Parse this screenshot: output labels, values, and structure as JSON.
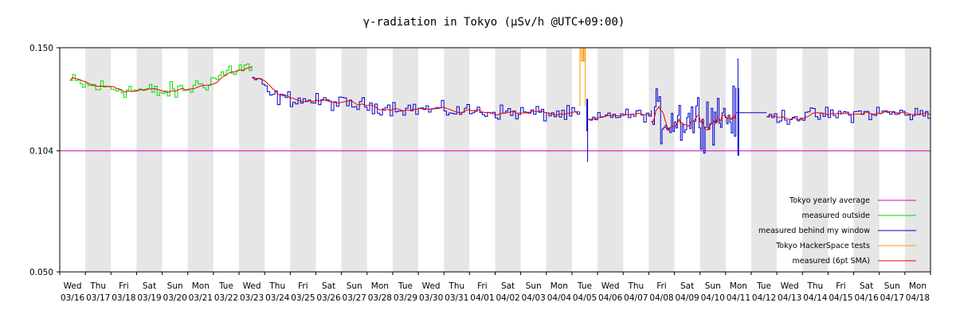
{
  "chart_data": {
    "type": "line",
    "title": "γ-radiation in Tokyo (μSv/h @UTC+09:00)",
    "xlabel": "",
    "ylabel": "",
    "x_range": [
      "03/16",
      "04/18"
    ],
    "ylim": [
      0.05,
      0.15
    ],
    "y_ticks": [
      "0.150",
      "0.104",
      "0.050"
    ],
    "grid": "alternating day shading",
    "legend_position": "bottom-right",
    "days": [
      {
        "dow": "Wed",
        "date": "03/16"
      },
      {
        "dow": "Thu",
        "date": "03/17"
      },
      {
        "dow": "Fri",
        "date": "03/18"
      },
      {
        "dow": "Sat",
        "date": "03/19"
      },
      {
        "dow": "Sun",
        "date": "03/20"
      },
      {
        "dow": "Mon",
        "date": "03/21"
      },
      {
        "dow": "Tue",
        "date": "03/22"
      },
      {
        "dow": "Wed",
        "date": "03/23"
      },
      {
        "dow": "Thu",
        "date": "03/24"
      },
      {
        "dow": "Fri",
        "date": "03/25"
      },
      {
        "dow": "Sat",
        "date": "03/26"
      },
      {
        "dow": "Sun",
        "date": "03/27"
      },
      {
        "dow": "Mon",
        "date": "03/28"
      },
      {
        "dow": "Tue",
        "date": "03/29"
      },
      {
        "dow": "Wed",
        "date": "03/30"
      },
      {
        "dow": "Thu",
        "date": "03/31"
      },
      {
        "dow": "Fri",
        "date": "04/01"
      },
      {
        "dow": "Sat",
        "date": "04/02"
      },
      {
        "dow": "Sun",
        "date": "04/03"
      },
      {
        "dow": "Mon",
        "date": "04/04"
      },
      {
        "dow": "Tue",
        "date": "04/05"
      },
      {
        "dow": "Wed",
        "date": "04/06"
      },
      {
        "dow": "Thu",
        "date": "04/07"
      },
      {
        "dow": "Fri",
        "date": "04/08"
      },
      {
        "dow": "Sat",
        "date": "04/09"
      },
      {
        "dow": "Sun",
        "date": "04/10"
      },
      {
        "dow": "Mon",
        "date": "04/11"
      },
      {
        "dow": "Tue",
        "date": "04/12"
      },
      {
        "dow": "Wed",
        "date": "04/13"
      },
      {
        "dow": "Thu",
        "date": "04/14"
      },
      {
        "dow": "Fri",
        "date": "04/15"
      },
      {
        "dow": "Sat",
        "date": "04/16"
      },
      {
        "dow": "Sun",
        "date": "04/17"
      },
      {
        "dow": "Mon",
        "date": "04/18"
      }
    ],
    "series": [
      {
        "name": "Tokyo yearly average",
        "color": "#cc00cc",
        "style": "constant",
        "value": 0.104,
        "x_start": 0,
        "x_end": 34
      },
      {
        "name": "measured outside",
        "color": "#00dd00",
        "x_start": 0.4,
        "x_end": 7.5,
        "x_step": 0.1,
        "values_mean": [
          0.135,
          0.133,
          0.132,
          0.131,
          0.13,
          0.131,
          0.133,
          0.136,
          0.14,
          0.141,
          0.141
        ],
        "values_mean_x": [
          0.4,
          1,
          2,
          3,
          4,
          4.7,
          5.3,
          6.0,
          6.6,
          7.2,
          7.5
        ],
        "noise_amplitude": 0.006
      },
      {
        "name": "measured behind my window",
        "color": "#0000cc",
        "segments": [
          {
            "x_start": 7.5,
            "x_end": 20.3,
            "x_step": 0.1,
            "values_mean": [
              0.137,
              0.128,
              0.126,
              0.124,
              0.122,
              0.121,
              0.12
            ],
            "values_mean_x": [
              7.5,
              8.3,
              10,
              12,
              15,
              18,
              20.3
            ],
            "noise_amplitude": 0.005
          },
          {
            "x_start": 20.6,
            "x_end": 23.1,
            "x_step": 0.1,
            "values_mean": [
              0.117,
              0.12,
              0.12
            ],
            "values_mean_x": [
              20.6,
              21.5,
              23.1
            ],
            "noise_amplitude": 0.004
          },
          {
            "x_start": 23.1,
            "x_end": 26.4,
            "x_step": 0.06,
            "values_mean": [
              0.119,
              0.118,
              0.119,
              0.12
            ],
            "values_mean_x": [
              23.1,
              24,
              25,
              26.4
            ],
            "noise_amplitude": 0.017
          },
          {
            "x_start": 27.6,
            "x_end": 34.0,
            "x_step": 0.1,
            "values_mean": [
              0.119,
              0.12,
              0.121,
              0.12
            ],
            "values_mean_x": [
              27.6,
              30,
              32,
              34
            ],
            "noise_amplitude": 0.005
          }
        ],
        "flat_links": [
          {
            "x_start": 26.4,
            "x_end": 27.6,
            "value": 0.121
          }
        ],
        "spikes": [
          {
            "x": 20.55,
            "values": [
              0.113,
              0.127,
              0.099
            ]
          },
          {
            "x": 26.45,
            "values": [
              0.145,
              0.102,
              0.132
            ]
          }
        ]
      },
      {
        "name": "Tokyo HackerSpace tests",
        "color": "#ff9900",
        "points_x": [
          20.3,
          20.31,
          20.35,
          20.36,
          20.42,
          20.45,
          20.5,
          20.52
        ],
        "points_y": [
          0.124,
          0.15,
          0.15,
          0.144,
          0.15,
          0.144,
          0.15,
          0.124
        ]
      },
      {
        "name": "measured (6pt SMA)",
        "color": "#ee0000",
        "style": "smoothed"
      }
    ]
  }
}
